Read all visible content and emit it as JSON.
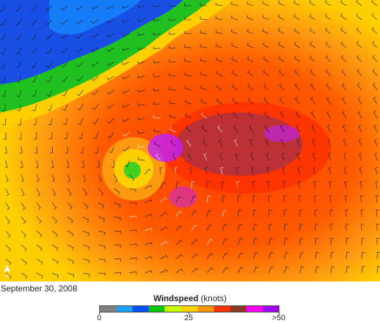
{
  "date": "September 30, 2008",
  "legend": {
    "title_bold": "Windspeed",
    "title_unit": "(knots)",
    "ticks": [
      "0",
      "25",
      ">50"
    ],
    "colors": [
      "#808080",
      "#1ea0ff",
      "#0050ff",
      "#00c800",
      "#c8ff00",
      "#ffd200",
      "#ff9600",
      "#ff3200",
      "#8c3c1e",
      "#ff00ff",
      "#a000ff"
    ]
  },
  "map": {
    "background_colors": {
      "low": "#1a4fe6",
      "mid_low": "#16c21a",
      "mid": "#ffd000",
      "high": "#ff7a10",
      "very_high": "#ff3300",
      "extreme": "#a0306c",
      "max": "#c020ff"
    }
  }
}
